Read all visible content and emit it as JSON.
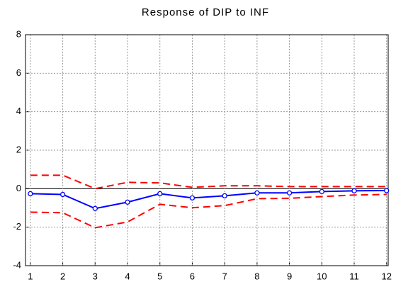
{
  "chart_data": {
    "type": "line",
    "title": "Response of DIP to INF",
    "x": [
      1,
      2,
      3,
      4,
      5,
      6,
      7,
      8,
      9,
      10,
      11,
      12
    ],
    "series": [
      {
        "color": "#0000ff",
        "style": "solid",
        "markers": true,
        "values": [
          -0.26,
          -0.3,
          -1.03,
          -0.7,
          -0.26,
          -0.48,
          -0.37,
          -0.22,
          -0.22,
          -0.15,
          -0.11,
          -0.1
        ]
      },
      {
        "color": "#ff0000",
        "style": "dashed",
        "markers": false,
        "values": [
          0.7,
          0.7,
          0,
          0.33,
          0.3,
          0.07,
          0.15,
          0.15,
          0.11,
          0.11,
          0.11,
          0.11
        ]
      },
      {
        "color": "#ff0000",
        "style": "dashed",
        "markers": false,
        "values": [
          -1.22,
          -1.25,
          -2.03,
          -1.73,
          -0.81,
          -0.99,
          -0.88,
          -0.52,
          -0.5,
          -0.41,
          -0.33,
          -0.3
        ]
      }
    ],
    "xlim": [
      0.85,
      12.05
    ],
    "xticks": [
      1,
      2,
      3,
      4,
      5,
      6,
      7,
      8,
      9,
      10,
      11,
      12
    ],
    "ylim": [
      -4,
      8
    ],
    "yticks": [
      -4,
      -2,
      0,
      2,
      4,
      6,
      8
    ],
    "grid": true
  }
}
